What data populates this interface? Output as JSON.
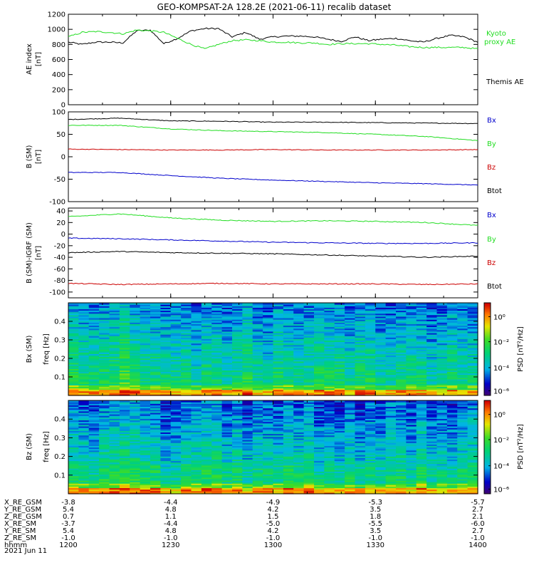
{
  "title": "GEO-KOMPSAT-2A 128.2E (2021-06-11) recalib dataset",
  "time_axis": {
    "ticks": [
      1200,
      1230,
      1300,
      1330,
      1400
    ],
    "range_minutes": [
      720,
      840
    ]
  },
  "colors": {
    "black": "#000000",
    "green": "#22dd22",
    "red": "#cc0000",
    "blue": "#0000cc"
  },
  "ephemeris": {
    "labels": [
      "X_RE_GSM",
      "Y_RE_GSM",
      "Z_RE_GSM",
      "X_RE_SM",
      "Y_RE_SM",
      "Z_RE_SM",
      "hhmm"
    ],
    "date": "2021 Jun 11",
    "rows": [
      [
        "-3.8",
        "-4.4",
        "-4.9",
        "-5.3",
        "-5.7"
      ],
      [
        "5.4",
        "4.8",
        "4.2",
        "3.5",
        "2.7"
      ],
      [
        "0.7",
        "1.1",
        "1.5",
        "1.8",
        "2.1"
      ],
      [
        "-3.7",
        "-4.4",
        "-5.0",
        "-5.5",
        "-6.0"
      ],
      [
        "5.4",
        "4.8",
        "4.2",
        "3.5",
        "2.7"
      ],
      [
        "-1.0",
        "-1.0",
        "-1.0",
        "-1.0",
        "-1.0"
      ],
      [
        "1200",
        "1230",
        "1300",
        "1330",
        "1400"
      ]
    ]
  },
  "chart_data": [
    {
      "type": "line",
      "ylabel": "AE index",
      "yunit": "[nT]",
      "ylim": [
        0,
        1200
      ],
      "yticks": [
        0,
        200,
        400,
        600,
        800,
        1000,
        1200
      ],
      "legend": [
        "Kyoto proxy AE",
        "Themis AE"
      ],
      "series": [
        {
          "name": "Themis AE",
          "color": "#000000",
          "x": [
            720,
            724,
            728,
            732,
            736,
            740,
            744,
            748,
            752,
            756,
            760,
            764,
            768,
            772,
            776,
            780,
            784,
            788,
            792,
            796,
            800,
            804,
            808,
            812,
            816,
            820,
            824,
            828,
            832,
            836,
            840
          ],
          "y": [
            830,
            800,
            830,
            830,
            820,
            980,
            990,
            810,
            880,
            980,
            1010,
            1010,
            900,
            960,
            870,
            900,
            910,
            910,
            900,
            870,
            840,
            900,
            850,
            870,
            880,
            850,
            830,
            880,
            920,
            900,
            830
          ]
        },
        {
          "name": "Kyoto proxy AE",
          "color": "#22dd22",
          "x": [
            720,
            724,
            728,
            732,
            736,
            740,
            744,
            748,
            752,
            756,
            760,
            764,
            768,
            772,
            776,
            780,
            784,
            788,
            792,
            796,
            800,
            804,
            808,
            812,
            816,
            820,
            824,
            828,
            832,
            836,
            840
          ],
          "y": [
            900,
            960,
            970,
            960,
            940,
            990,
            980,
            960,
            880,
            800,
            740,
            800,
            850,
            860,
            850,
            830,
            830,
            820,
            820,
            800,
            810,
            810,
            810,
            800,
            790,
            770,
            760,
            760,
            760,
            760,
            740
          ]
        }
      ]
    },
    {
      "type": "line",
      "ylabel": "B (SM)",
      "yunit": "[nT]",
      "ylim": [
        -100,
        100
      ],
      "yticks": [
        -100,
        -50,
        0,
        50,
        100
      ],
      "legend": [
        "Bx",
        "By",
        "Bz",
        "Btot"
      ],
      "series": [
        {
          "name": "Btot",
          "color": "#000000",
          "x": [
            720,
            735,
            750,
            765,
            780,
            795,
            810,
            825,
            840
          ],
          "y": [
            83,
            86,
            80,
            79,
            77,
            77,
            76,
            75,
            74
          ]
        },
        {
          "name": "By",
          "color": "#22dd22",
          "x": [
            720,
            735,
            750,
            765,
            780,
            795,
            810,
            825,
            840
          ],
          "y": [
            70,
            70,
            62,
            58,
            56,
            54,
            50,
            45,
            36
          ]
        },
        {
          "name": "Bz",
          "color": "#cc0000",
          "x": [
            720,
            735,
            750,
            765,
            780,
            795,
            810,
            825,
            840
          ],
          "y": [
            17,
            16,
            15,
            15,
            16,
            15,
            15,
            15,
            16
          ]
        },
        {
          "name": "Bx",
          "color": "#0000cc",
          "x": [
            720,
            735,
            750,
            765,
            780,
            795,
            810,
            825,
            840
          ],
          "y": [
            -35,
            -35,
            -42,
            -48,
            -52,
            -55,
            -58,
            -60,
            -63
          ]
        }
      ]
    },
    {
      "type": "line",
      "ylabel": "B (SM)-IGRF (SM)",
      "yunit": "[nT]",
      "ylim": [
        -110,
        45
      ],
      "yticks": [
        -100,
        -80,
        -60,
        -40,
        -20,
        0,
        20,
        40
      ],
      "legend": [
        "Bx",
        "By",
        "Bz",
        "Btot"
      ],
      "series": [
        {
          "name": "By",
          "color": "#22dd22",
          "x": [
            720,
            735,
            750,
            765,
            780,
            795,
            810,
            825,
            840
          ],
          "y": [
            30,
            35,
            28,
            24,
            22,
            23,
            22,
            20,
            15
          ]
        },
        {
          "name": "Bx",
          "color": "#0000cc",
          "x": [
            720,
            735,
            750,
            765,
            780,
            795,
            810,
            825,
            840
          ],
          "y": [
            -7,
            -8,
            -10,
            -12,
            -14,
            -15,
            -16,
            -16,
            -15
          ]
        },
        {
          "name": "Btot",
          "color": "#000000",
          "x": [
            720,
            735,
            750,
            765,
            780,
            795,
            810,
            825,
            840
          ],
          "y": [
            -32,
            -30,
            -32,
            -33,
            -34,
            -36,
            -38,
            -40,
            -38
          ]
        },
        {
          "name": "Bz",
          "color": "#cc0000",
          "x": [
            720,
            735,
            750,
            765,
            780,
            795,
            810,
            825,
            840
          ],
          "y": [
            -85,
            -87,
            -86,
            -85,
            -86,
            -86,
            -86,
            -87,
            -86
          ]
        }
      ]
    },
    {
      "type": "heatmap",
      "ylabel": "Bx (SM)",
      "ylabel2": "freq [Hz]",
      "ylim": [
        0,
        0.5
      ],
      "yticks": [
        0.1,
        0.2,
        0.3,
        0.4
      ],
      "colorbar": {
        "label": "PSD [nT²/Hz]",
        "ticks": [
          "10⁰",
          "10⁻²",
          "10⁻⁴",
          "10⁻⁶"
        ]
      }
    },
    {
      "type": "heatmap",
      "ylabel": "Bz (SM)",
      "ylabel2": "freq [Hz]",
      "ylim": [
        0,
        0.5
      ],
      "yticks": [
        0.1,
        0.2,
        0.3,
        0.4
      ],
      "colorbar": {
        "label": "PSD [nT²/Hz]",
        "ticks": [
          "10⁰",
          "10⁻²",
          "10⁻⁴",
          "10⁻⁶"
        ]
      }
    }
  ]
}
